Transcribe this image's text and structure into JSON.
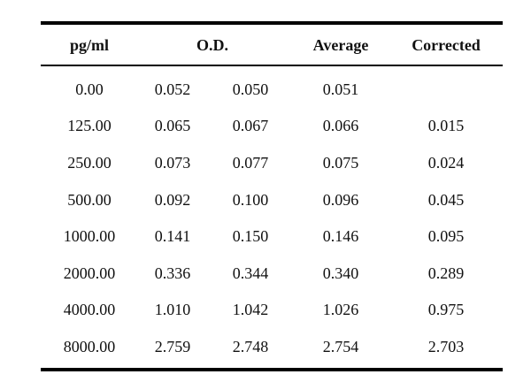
{
  "table": {
    "headers": {
      "concentration": "pg/ml",
      "od": "O.D.",
      "average": "Average",
      "corrected": "Corrected"
    },
    "rows": [
      {
        "concentration": "0.00",
        "od1": "0.052",
        "od2": "0.050",
        "average": "0.051",
        "corrected": ""
      },
      {
        "concentration": "125.00",
        "od1": "0.065",
        "od2": "0.067",
        "average": "0.066",
        "corrected": "0.015"
      },
      {
        "concentration": "250.00",
        "od1": "0.073",
        "od2": "0.077",
        "average": "0.075",
        "corrected": "0.024"
      },
      {
        "concentration": "500.00",
        "od1": "0.092",
        "od2": "0.100",
        "average": "0.096",
        "corrected": "0.045"
      },
      {
        "concentration": "1000.00",
        "od1": "0.141",
        "od2": "0.150",
        "average": "0.146",
        "corrected": "0.095"
      },
      {
        "concentration": "2000.00",
        "od1": "0.336",
        "od2": "0.344",
        "average": "0.340",
        "corrected": "0.289"
      },
      {
        "concentration": "4000.00",
        "od1": "1.010",
        "od2": "1.042",
        "average": "1.026",
        "corrected": "0.975"
      },
      {
        "concentration": "8000.00",
        "od1": "2.759",
        "od2": "2.748",
        "average": "2.754",
        "corrected": "2.703"
      }
    ]
  }
}
